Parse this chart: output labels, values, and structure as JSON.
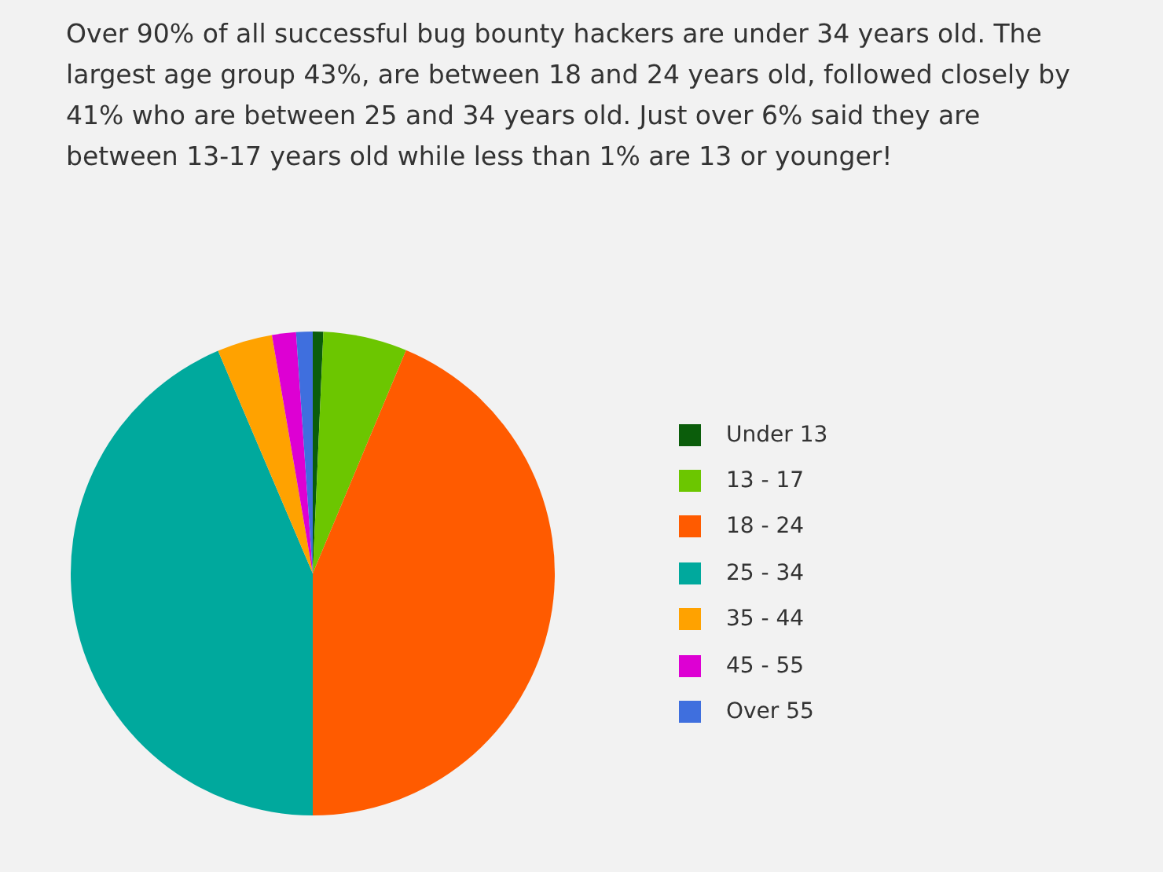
{
  "chart_data": {
    "type": "pie",
    "title": "Over 90% of all successful bug bounty hackers are under 34 years old. The largest age group 43%, are between 18 and 24 years old, followed closely by 41% who are between 25 and 34 years old. Just over 6% said they are between 13-17 years old while less than 1% are 13 or younger!",
    "categories": [
      "Under 13",
      "13 - 17",
      "18 - 24",
      "25 - 34",
      "35 - 44",
      "45 - 55",
      "Over 55"
    ],
    "values": [
      0.7,
      5.6,
      43.7,
      43.6,
      3.7,
      1.6,
      1.1
    ],
    "colors": [
      "#0b5d0b",
      "#6cc600",
      "#ff5b00",
      "#00a99d",
      "#ffa200",
      "#dd00d3",
      "#3f6fde"
    ],
    "legend": "right"
  }
}
